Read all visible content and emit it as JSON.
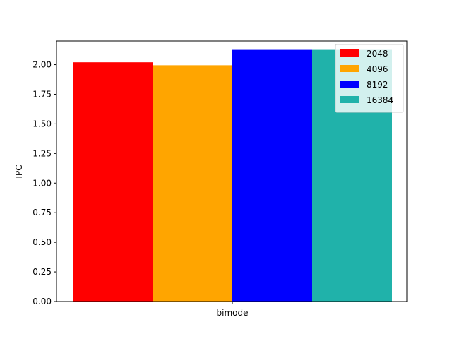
{
  "chart_data": {
    "type": "bar",
    "categories": [
      "bimode"
    ],
    "series": [
      {
        "name": "2048",
        "values": [
          2.02
        ],
        "color": "#ff0000"
      },
      {
        "name": "4096",
        "values": [
          1.995
        ],
        "color": "#ffa500"
      },
      {
        "name": "8192",
        "values": [
          2.125
        ],
        "color": "#0000ff"
      },
      {
        "name": "16384",
        "values": [
          2.125
        ],
        "color": "#20b2aa"
      }
    ],
    "title": "",
    "xlabel": "",
    "ylabel": "IPC",
    "ylim": [
      0,
      2.2
    ],
    "yticks": [
      "0.00",
      "0.25",
      "0.50",
      "0.75",
      "1.00",
      "1.25",
      "1.50",
      "1.75",
      "2.00"
    ],
    "grid": false,
    "legend_position": "top-right"
  }
}
